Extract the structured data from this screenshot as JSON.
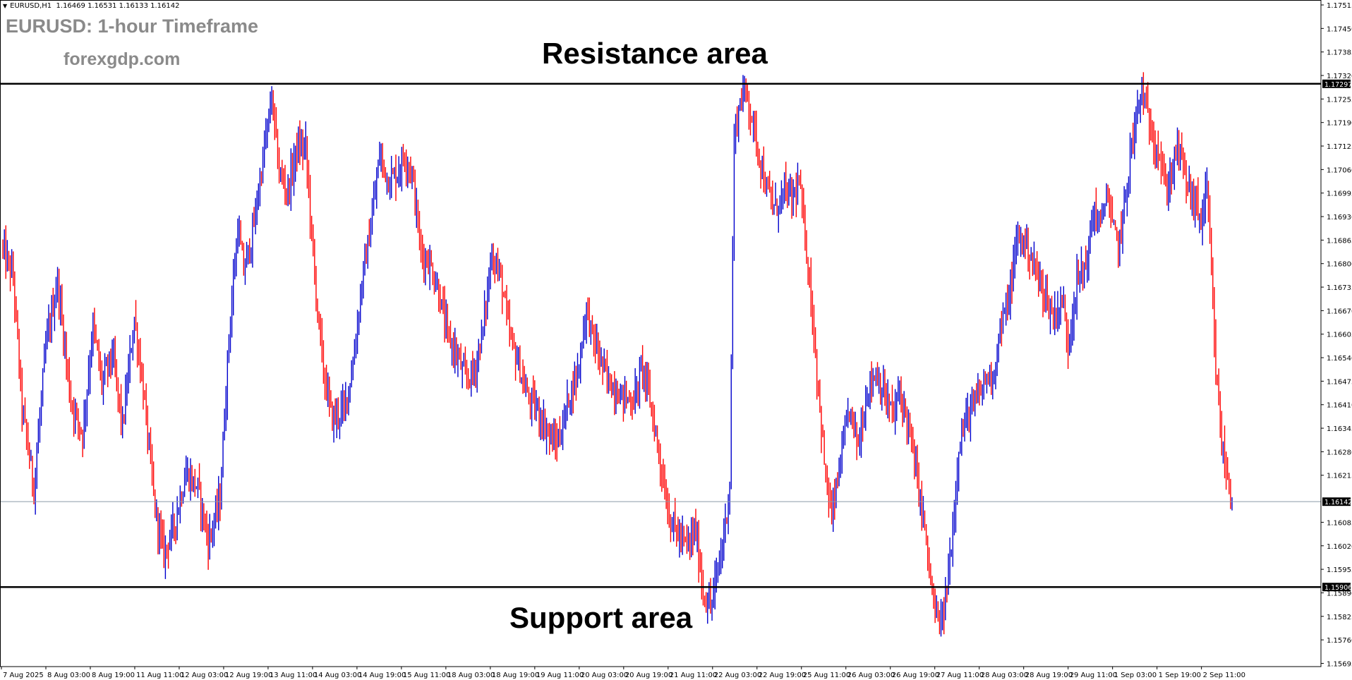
{
  "header": {
    "symbol": "EURUSD,H1",
    "ohlc": "1.16469 1.16531 1.16133 1.16142"
  },
  "title": "EURUSD: 1-hour Timeframe",
  "site": "forexgdp.com",
  "annotations": {
    "resistance": "Resistance area",
    "support": "Support area"
  },
  "colors": {
    "bull": "#0000cd",
    "bear": "#ff0000",
    "background": "#ffffff",
    "level_line": "#000000",
    "current_line": "#8a9aa8"
  },
  "chart_data": {
    "type": "candlestick",
    "symbol": "EURUSD",
    "timeframe": "H1",
    "ylim": [
      1.1569,
      1.17515
    ],
    "y_ticks": [
      "1.17515",
      "1.17450",
      "1.17385",
      "1.17320",
      "1.17255",
      "1.17190",
      "1.17125",
      "1.17060",
      "1.16995",
      "1.16930",
      "1.16865",
      "1.16800",
      "1.16735",
      "1.16670",
      "1.16605",
      "1.16540",
      "1.16475",
      "1.16410",
      "1.16345",
      "1.16280",
      "1.16215",
      "1.16085",
      "1.16020",
      "1.15955",
      "1.15890",
      "1.15825",
      "1.15760",
      "1.15695"
    ],
    "x_labels": [
      "7 Aug 2025",
      "8 Aug 03:00",
      "8 Aug 19:00",
      "11 Aug 11:00",
      "12 Aug 03:00",
      "12 Aug 19:00",
      "13 Aug 11:00",
      "14 Aug 03:00",
      "14 Aug 19:00",
      "15 Aug 11:00",
      "18 Aug 03:00",
      "18 Aug 19:00",
      "19 Aug 11:00",
      "20 Aug 03:00",
      "20 Aug 19:00",
      "21 Aug 11:00",
      "22 Aug 03:00",
      "22 Aug 19:00",
      "25 Aug 11:00",
      "26 Aug 03:00",
      "26 Aug 19:00",
      "27 Aug 11:00",
      "28 Aug 03:00",
      "28 Aug 19:00",
      "29 Aug 11:00",
      "1 Sep 03:00",
      "1 Sep 19:00",
      "2 Sep 11:00"
    ],
    "resistance_level": 1.17297,
    "resistance_label": "1.17297",
    "support_level": 1.15906,
    "support_label": "1.15906",
    "current_price": 1.16142,
    "current_label": "1.16142",
    "price_path": [
      [
        0,
        1.1685
      ],
      [
        8,
        1.1676
      ],
      [
        14,
        1.164
      ],
      [
        22,
        1.1618
      ],
      [
        30,
        1.1657
      ],
      [
        38,
        1.1675
      ],
      [
        47,
        1.1642
      ],
      [
        55,
        1.1633
      ],
      [
        62,
        1.1663
      ],
      [
        68,
        1.1647
      ],
      [
        75,
        1.1655
      ],
      [
        82,
        1.1635
      ],
      [
        90,
        1.1665
      ],
      [
        96,
        1.1645
      ],
      [
        104,
        1.1612
      ],
      [
        110,
        1.16
      ],
      [
        117,
        1.1608
      ],
      [
        125,
        1.1622
      ],
      [
        133,
        1.1618
      ],
      [
        140,
        1.1603
      ],
      [
        148,
        1.1615
      ],
      [
        154,
        1.166
      ],
      [
        160,
        1.169
      ],
      [
        164,
        1.1678
      ],
      [
        170,
        1.1688
      ],
      [
        178,
        1.1712
      ],
      [
        183,
        1.1726
      ],
      [
        188,
        1.1705
      ],
      [
        194,
        1.17
      ],
      [
        200,
        1.1712
      ],
      [
        206,
        1.1712
      ],
      [
        212,
        1.1676
      ],
      [
        218,
        1.165
      ],
      [
        224,
        1.1637
      ],
      [
        232,
        1.164
      ],
      [
        238,
        1.1652
      ],
      [
        244,
        1.1675
      ],
      [
        250,
        1.169
      ],
      [
        256,
        1.171
      ],
      [
        262,
        1.1703
      ],
      [
        268,
        1.1705
      ],
      [
        273,
        1.171
      ],
      [
        278,
        1.1705
      ],
      [
        284,
        1.1683
      ],
      [
        290,
        1.168
      ],
      [
        296,
        1.1672
      ],
      [
        302,
        1.166
      ],
      [
        308,
        1.1655
      ],
      [
        314,
        1.1648
      ],
      [
        320,
        1.165
      ],
      [
        326,
        1.1662
      ],
      [
        332,
        1.1683
      ],
      [
        338,
        1.1676
      ],
      [
        344,
        1.166
      ],
      [
        350,
        1.1652
      ],
      [
        356,
        1.1643
      ],
      [
        362,
        1.164
      ],
      [
        368,
        1.1635
      ],
      [
        374,
        1.163
      ],
      [
        378,
        1.1632
      ],
      [
        384,
        1.1643
      ],
      [
        390,
        1.165
      ],
      [
        396,
        1.1668
      ],
      [
        400,
        1.166
      ],
      [
        404,
        1.1655
      ],
      [
        410,
        1.1648
      ],
      [
        416,
        1.1645
      ],
      [
        422,
        1.1643
      ],
      [
        428,
        1.1642
      ],
      [
        434,
        1.1652
      ],
      [
        440,
        1.164
      ],
      [
        446,
        1.1625
      ],
      [
        452,
        1.161
      ],
      [
        458,
        1.1605
      ],
      [
        464,
        1.1602
      ],
      [
        470,
        1.1606
      ],
      [
        475,
        1.1589
      ],
      [
        480,
        1.1585
      ],
      [
        485,
        1.1595
      ],
      [
        490,
        1.1608
      ],
      [
        493,
        1.162
      ],
      [
        496,
        1.1715
      ],
      [
        500,
        1.1725
      ],
      [
        504,
        1.1728
      ],
      [
        508,
        1.172
      ],
      [
        512,
        1.1712
      ],
      [
        518,
        1.17
      ],
      [
        524,
        1.1695
      ],
      [
        530,
        1.17
      ],
      [
        535,
        1.1698
      ],
      [
        540,
        1.1702
      ],
      [
        546,
        1.168
      ],
      [
        550,
        1.166
      ],
      [
        554,
        1.164
      ],
      [
        558,
        1.162
      ],
      [
        562,
        1.161
      ],
      [
        568,
        1.1625
      ],
      [
        574,
        1.164
      ],
      [
        580,
        1.163
      ],
      [
        586,
        1.1645
      ],
      [
        592,
        1.165
      ],
      [
        598,
        1.1643
      ],
      [
        604,
        1.1638
      ],
      [
        608,
        1.1645
      ],
      [
        614,
        1.1635
      ],
      [
        618,
        1.1625
      ],
      [
        624,
        1.161
      ],
      [
        628,
        1.1595
      ],
      [
        632,
        1.1583
      ],
      [
        636,
        1.158
      ],
      [
        640,
        1.159
      ],
      [
        644,
        1.1607
      ],
      [
        648,
        1.163
      ],
      [
        654,
        1.1638
      ],
      [
        660,
        1.1642
      ],
      [
        666,
        1.1648
      ],
      [
        672,
        1.165
      ],
      [
        676,
        1.1662
      ],
      [
        682,
        1.167
      ],
      [
        688,
        1.1688
      ],
      [
        694,
        1.1685
      ],
      [
        700,
        1.1678
      ],
      [
        706,
        1.1672
      ],
      [
        712,
        1.1665
      ],
      [
        718,
        1.167
      ],
      [
        722,
        1.1658
      ],
      [
        728,
        1.1675
      ],
      [
        734,
        1.168
      ],
      [
        740,
        1.1695
      ],
      [
        744,
        1.169
      ],
      [
        748,
        1.17
      ],
      [
        752,
        1.169
      ],
      [
        756,
        1.1685
      ],
      [
        760,
        1.1695
      ],
      [
        764,
        1.171
      ],
      [
        768,
        1.172
      ],
      [
        772,
        1.1728
      ],
      [
        776,
        1.172
      ],
      [
        780,
        1.1715
      ],
      [
        784,
        1.171
      ],
      [
        788,
        1.17
      ],
      [
        792,
        1.1705
      ],
      [
        796,
        1.1712
      ],
      [
        800,
        1.1707
      ],
      [
        804,
        1.17
      ],
      [
        808,
        1.1697
      ],
      [
        812,
        1.1692
      ],
      [
        816,
        1.17
      ],
      [
        818,
        1.1685
      ],
      [
        822,
        1.165
      ],
      [
        826,
        1.163
      ],
      [
        830,
        1.162
      ],
      [
        833,
        1.1614
      ]
    ]
  }
}
